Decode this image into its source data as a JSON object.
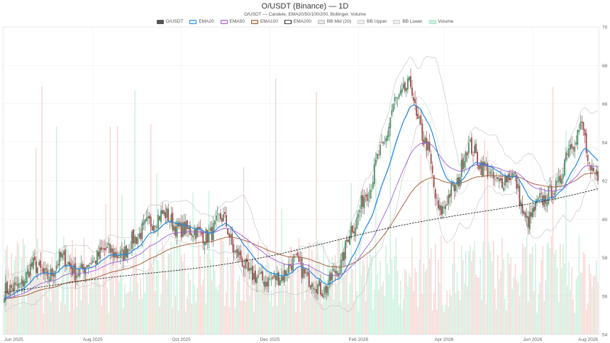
{
  "chart_data": {
    "type": "candlestick",
    "title": "O/USDT (Binance) — 1D",
    "subtitle": "O/USDT — Candele, EMA20/50/100/200, Bollinger, Volume",
    "legend": [
      {
        "name": "O/USDT",
        "color": "#555555",
        "fill": "#555555"
      },
      {
        "name": "EMA20",
        "color": "#1e88e5",
        "fill": "#e3f0fc"
      },
      {
        "name": "EMA50",
        "color": "#9c5fd9",
        "fill": "#efe6fa"
      },
      {
        "name": "EMA100",
        "color": "#a0522d",
        "fill": "#f5e6dc"
      },
      {
        "name": "EMA200",
        "color": "#222222",
        "fill": "#ffffff"
      },
      {
        "name": "BB Mid (20)",
        "color": "#bbbbbb",
        "fill": "#e6e6e6"
      },
      {
        "name": "BB Upper",
        "color": "#cccccc",
        "fill": "#eeeeee"
      },
      {
        "name": "BB Lower",
        "color": "#cccccc",
        "fill": "#eeeeee"
      },
      {
        "name": "Volume",
        "color": "#a8e6c8",
        "fill": "#cdf1de"
      }
    ],
    "x_ticks": [
      "Jun 2025",
      "Aug 2025",
      "Oct 2025",
      "Dec 2025",
      "Feb 2026",
      "Apr 2026",
      "Jun 2026",
      "Aug 2026"
    ],
    "y_ticks": [
      54,
      56,
      58,
      60,
      62,
      64,
      66,
      68,
      70
    ],
    "ylim": [
      54,
      70
    ],
    "grid": true,
    "close_anchors": [
      [
        0,
        56.3
      ],
      [
        10,
        56.5
      ],
      [
        20,
        57.6
      ],
      [
        30,
        57.0
      ],
      [
        40,
        58.0
      ],
      [
        50,
        57.2
      ],
      [
        60,
        57.8
      ],
      [
        70,
        58.4
      ],
      [
        80,
        58.1
      ],
      [
        90,
        59.0
      ],
      [
        100,
        59.8
      ],
      [
        110,
        60.3
      ],
      [
        120,
        59.5
      ],
      [
        130,
        59.4
      ],
      [
        140,
        59.1
      ],
      [
        150,
        60.1
      ],
      [
        160,
        58.2
      ],
      [
        170,
        57.1
      ],
      [
        180,
        56.8
      ],
      [
        190,
        57.0
      ],
      [
        200,
        57.8
      ],
      [
        210,
        56.9
      ],
      [
        220,
        56.3
      ],
      [
        230,
        57.4
      ],
      [
        240,
        59.6
      ],
      [
        250,
        61.4
      ],
      [
        260,
        63.6
      ],
      [
        270,
        66.2
      ],
      [
        280,
        67.0
      ],
      [
        285,
        65.0
      ],
      [
        290,
        64.0
      ],
      [
        300,
        60.4
      ],
      [
        310,
        61.6
      ],
      [
        320,
        63.8
      ],
      [
        330,
        62.7
      ],
      [
        340,
        61.9
      ],
      [
        350,
        62.3
      ],
      [
        360,
        59.9
      ],
      [
        370,
        61.0
      ],
      [
        380,
        61.6
      ],
      [
        390,
        63.9
      ],
      [
        398,
        64.8
      ],
      [
        404,
        62.3
      ],
      [
        409,
        62.3
      ]
    ],
    "ema200_start": 56.2,
    "ema200_end": 61.7
  }
}
